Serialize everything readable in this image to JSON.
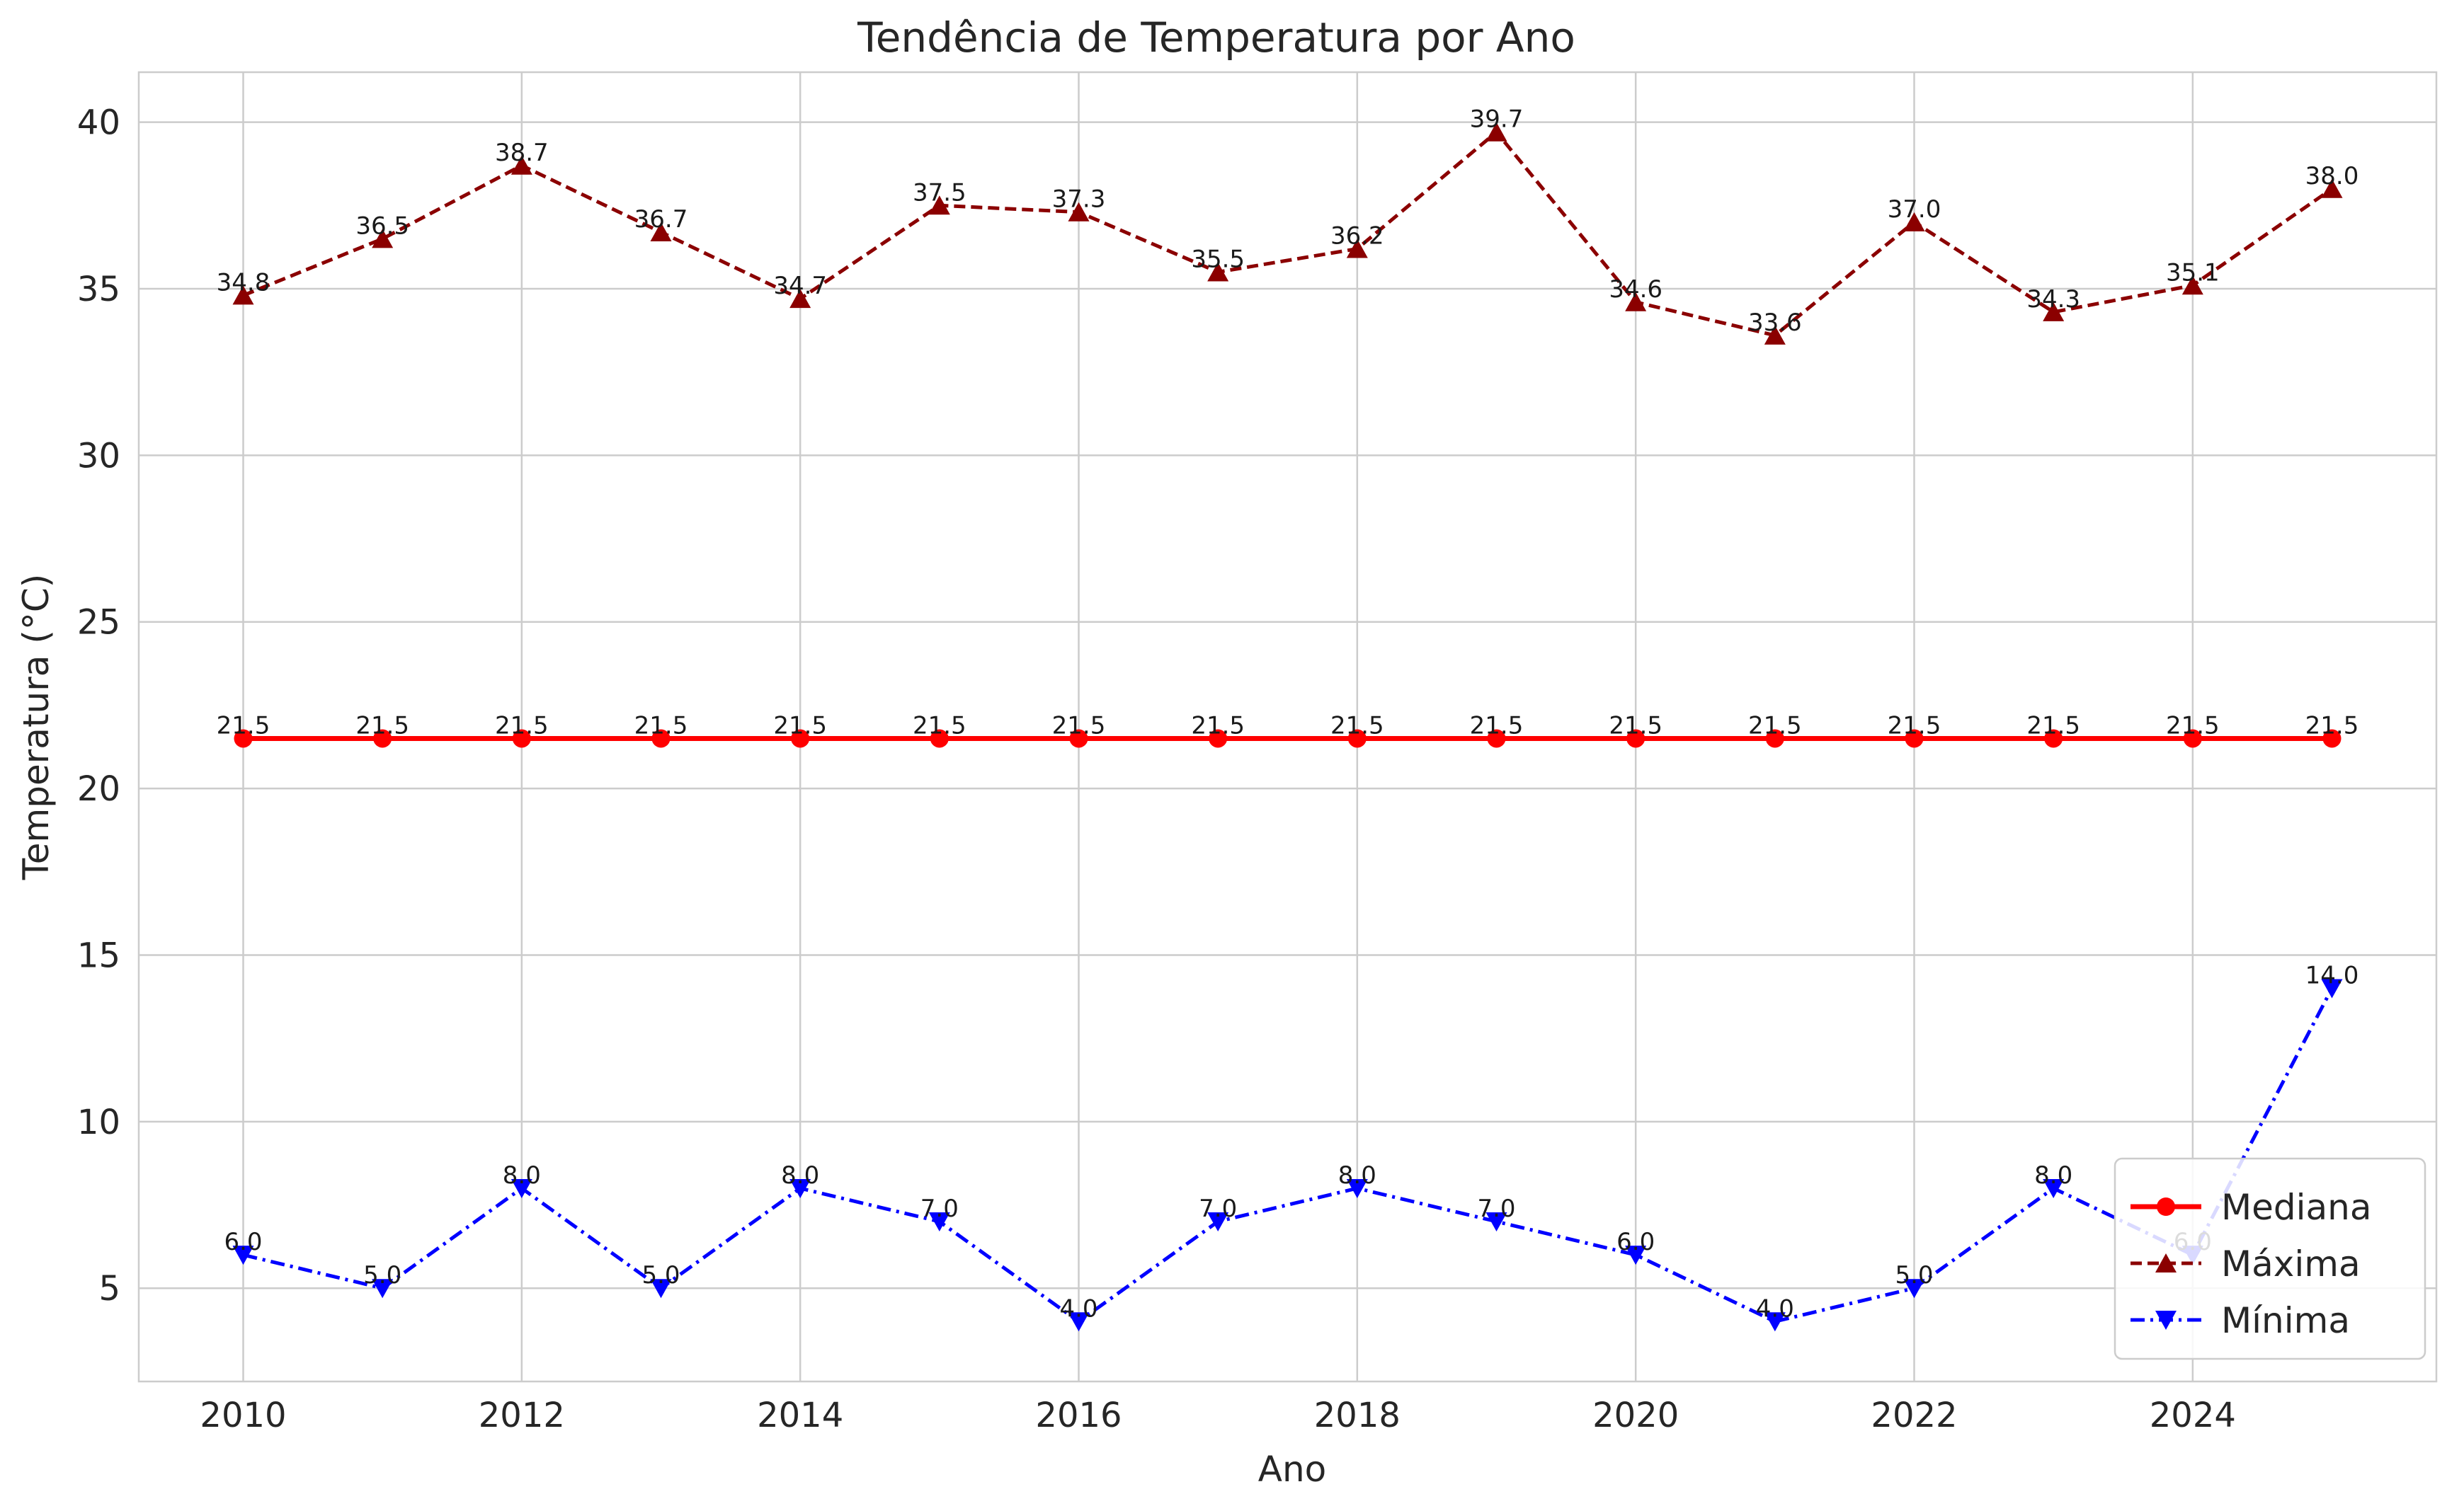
{
  "chart_data": {
    "type": "line",
    "title": "Tendência de Temperatura por Ano",
    "xlabel": "Ano",
    "ylabel": "Temperatura (°C)",
    "x": [
      2010,
      2011,
      2012,
      2013,
      2014,
      2015,
      2016,
      2017,
      2018,
      2019,
      2020,
      2021,
      2022,
      2023,
      2024,
      2025
    ],
    "xlim": [
      2009.25,
      2025.75
    ],
    "ylim": [
      2.2,
      41.5
    ],
    "xticks": [
      2010,
      2012,
      2014,
      2016,
      2018,
      2020,
      2022,
      2024
    ],
    "yticks": [
      5,
      10,
      15,
      20,
      25,
      30,
      35,
      40
    ],
    "grid": true,
    "legend_position": "lower-right",
    "series": [
      {
        "name": "Mediana",
        "color": "#ff0000",
        "line_style": "solid",
        "marker": "circle",
        "values": [
          21.5,
          21.5,
          21.5,
          21.5,
          21.5,
          21.5,
          21.5,
          21.5,
          21.5,
          21.5,
          21.5,
          21.5,
          21.5,
          21.5,
          21.5,
          21.5
        ]
      },
      {
        "name": "Máxima",
        "color": "#8b0000",
        "line_style": "dashed",
        "marker": "triangle-up",
        "values": [
          34.8,
          36.5,
          38.7,
          36.7,
          34.7,
          37.5,
          37.3,
          35.5,
          36.2,
          39.7,
          34.6,
          33.6,
          37.0,
          34.3,
          35.1,
          38.0
        ]
      },
      {
        "name": "Mínima",
        "color": "#0000ff",
        "line_style": "dashdot",
        "marker": "triangle-down",
        "values": [
          6.0,
          5.0,
          8.0,
          5.0,
          8.0,
          7.0,
          4.0,
          7.0,
          8.0,
          7.0,
          6.0,
          4.0,
          5.0,
          8.0,
          6.0,
          14.0
        ]
      }
    ]
  }
}
